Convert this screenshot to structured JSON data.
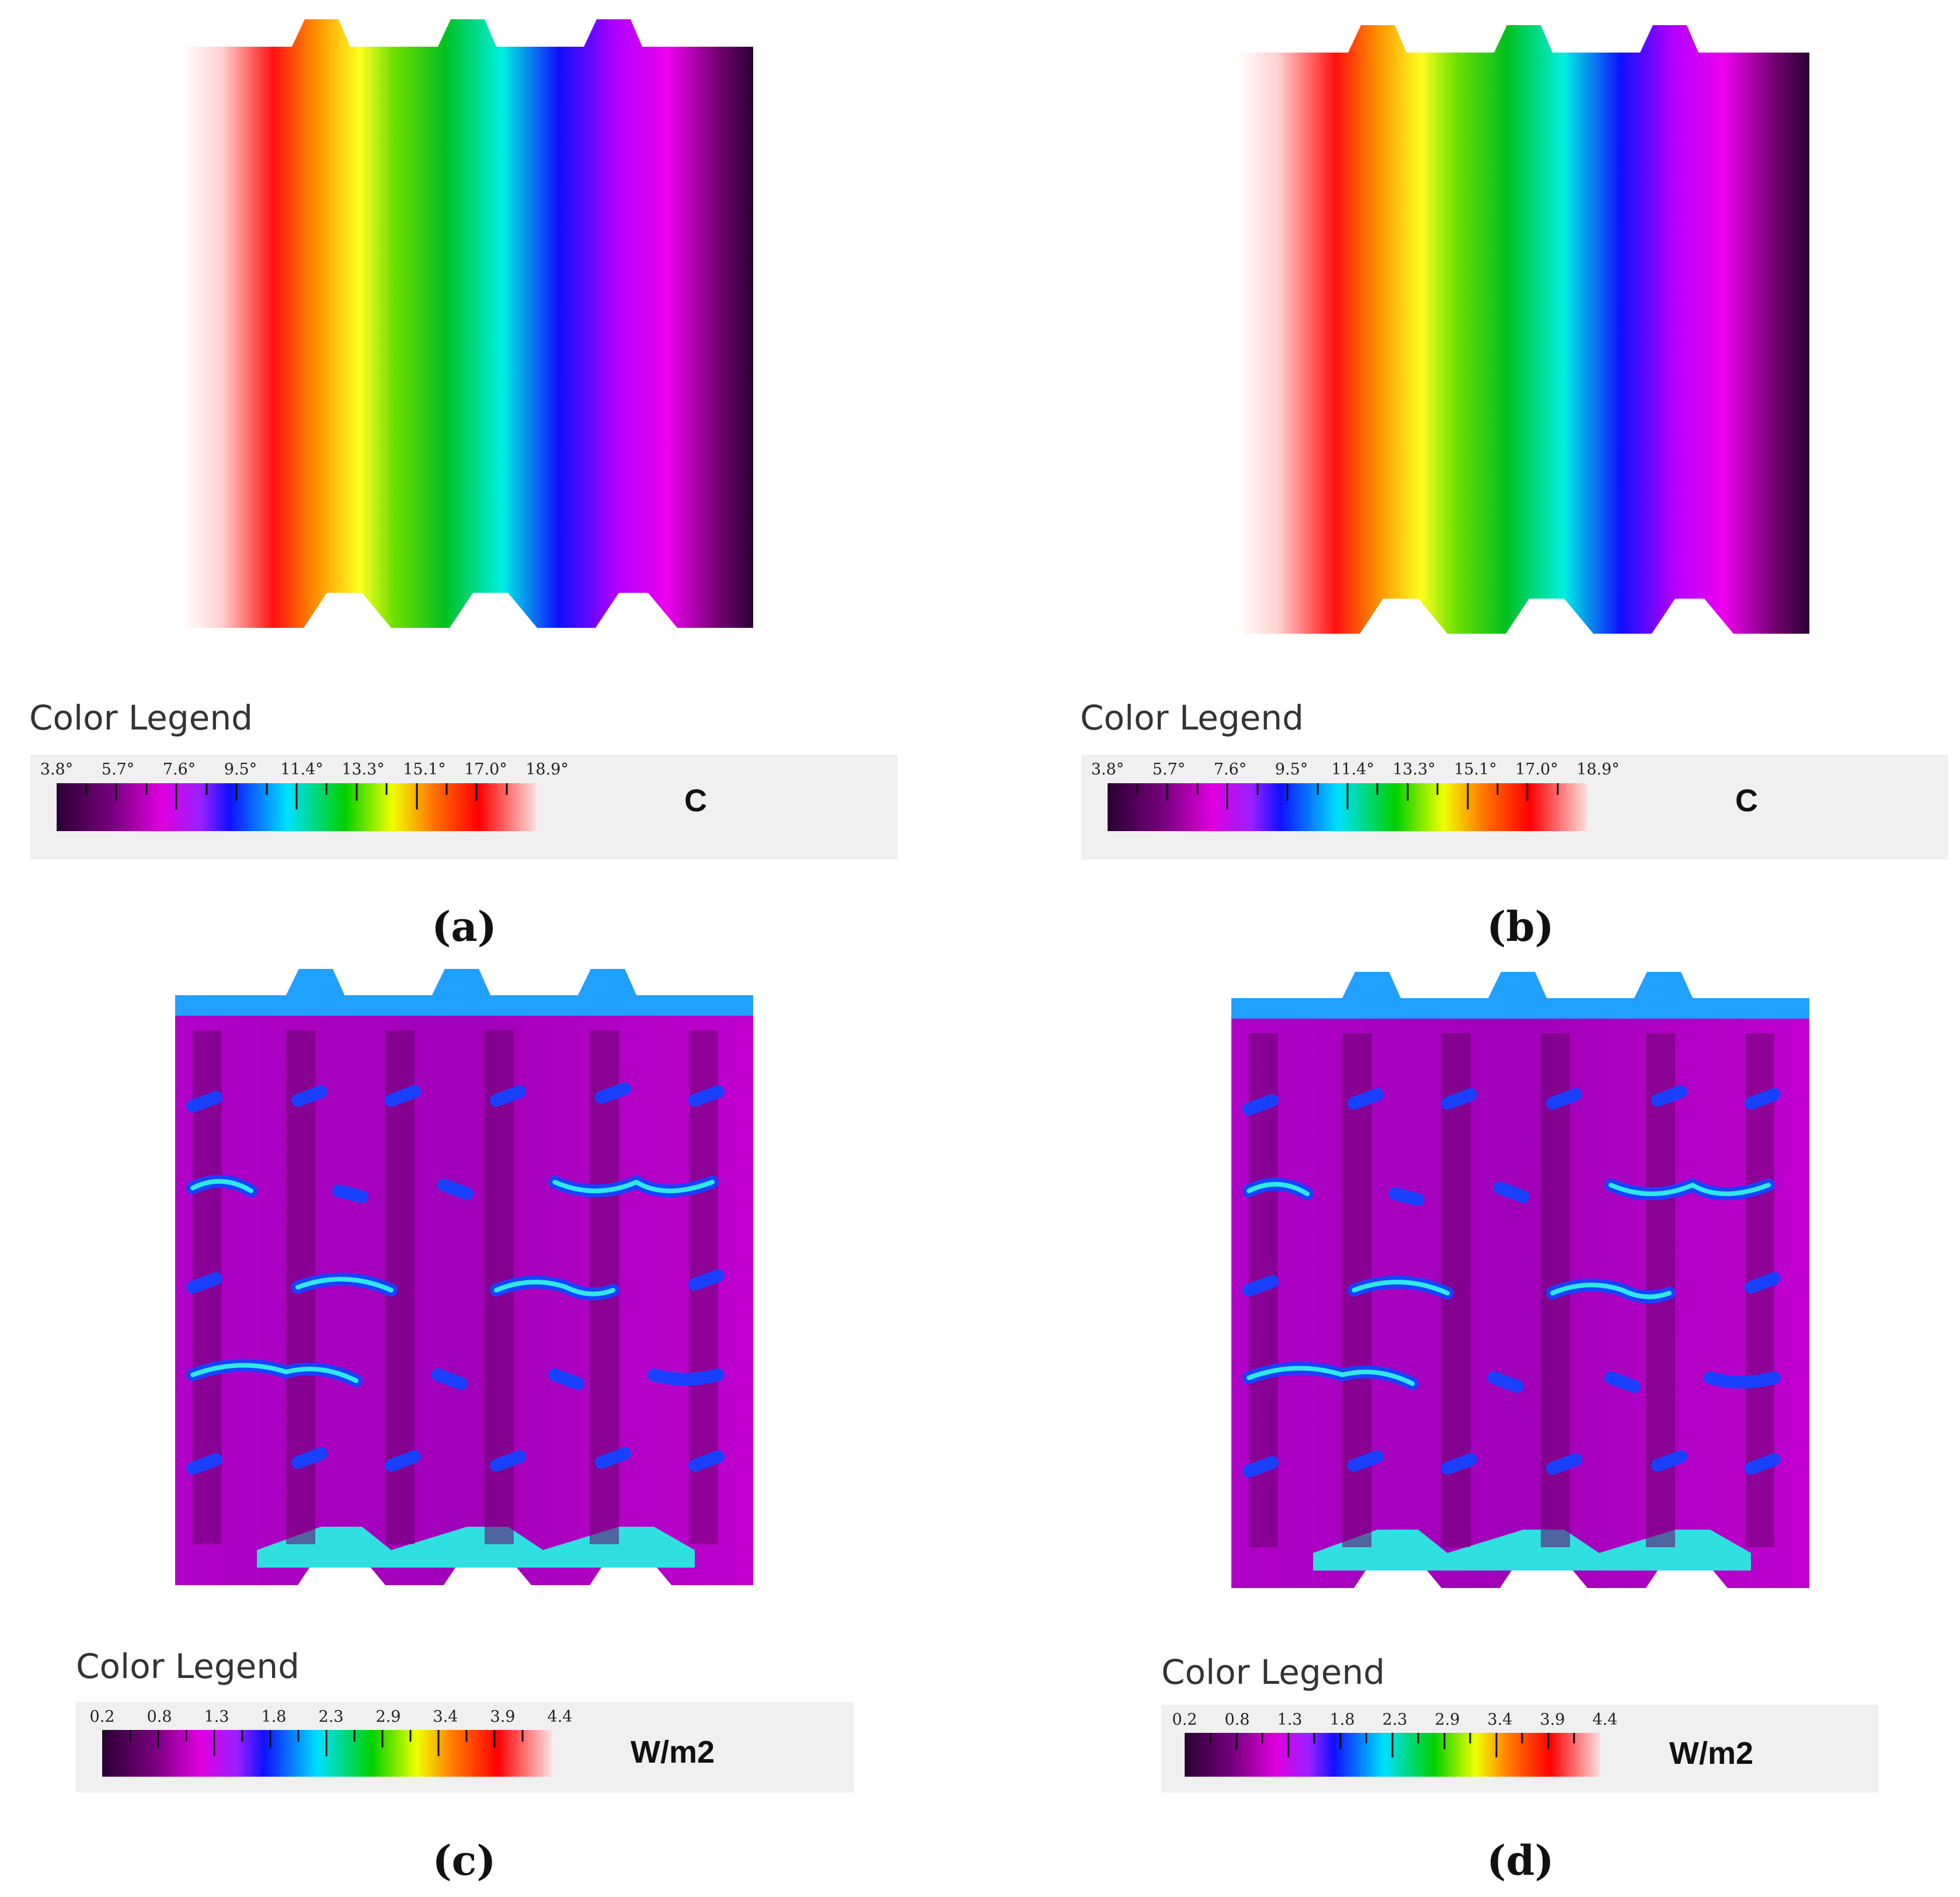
{
  "panels": [
    {
      "id": "a",
      "label": "(a)",
      "legend_title": "Color Legend",
      "unit": "C",
      "ticks": [
        "3.8°",
        "5.7°",
        "7.6°",
        "9.5°",
        "11.4°",
        "13.3°",
        "15.1°",
        "17.0°",
        "18.9°"
      ],
      "field": "temperature"
    },
    {
      "id": "b",
      "label": "(b)",
      "legend_title": "Color Legend",
      "unit": "C",
      "ticks": [
        "3.8°",
        "5.7°",
        "7.6°",
        "9.5°",
        "11.4°",
        "13.3°",
        "15.1°",
        "17.0°",
        "18.9°"
      ],
      "field": "temperature"
    },
    {
      "id": "c",
      "label": "(c)",
      "legend_title": "Color Legend",
      "unit": "W/m2",
      "ticks": [
        "0.2",
        "0.8",
        "1.3",
        "1.8",
        "2.3",
        "2.9",
        "3.4",
        "3.9",
        "4.4"
      ],
      "field": "heat_flux"
    },
    {
      "id": "d",
      "label": "(d)",
      "legend_title": "Color Legend",
      "unit": "W/m2",
      "ticks": [
        "0.2",
        "0.8",
        "1.3",
        "1.8",
        "2.3",
        "2.9",
        "3.4",
        "3.9",
        "4.4"
      ],
      "field": "heat_flux"
    }
  ],
  "colors": {
    "scale": [
      "#2a0033",
      "#7a0080",
      "#e000e0",
      "#1010ff",
      "#00e0ff",
      "#00d000",
      "#f0ff00",
      "#ff7a00",
      "#ff0000",
      "#ffe0e0"
    ],
    "legend_background": "#f0f0f0"
  }
}
